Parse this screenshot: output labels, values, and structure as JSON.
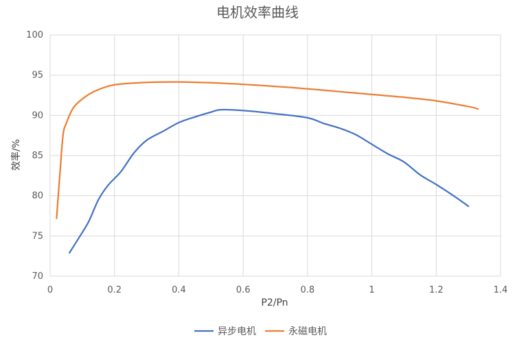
{
  "chart_data": {
    "type": "line",
    "title": "电机效率曲线",
    "xlabel": "P2/Pn",
    "ylabel": "效率/%",
    "xlim": [
      0,
      1.4
    ],
    "ylim": [
      70,
      100
    ],
    "x_ticks": [
      "0",
      "0.2",
      "0.4",
      "0.6",
      "0.8",
      "1",
      "1.2",
      "1.4"
    ],
    "y_ticks": [
      "70",
      "75",
      "80",
      "85",
      "90",
      "95",
      "100"
    ],
    "grid": "vertical-and-horizontal",
    "legend_position": "bottom",
    "series": [
      {
        "name": "异步电机",
        "color": "#4472c4",
        "points": [
          [
            0.06,
            72.9
          ],
          [
            0.09,
            74.8
          ],
          [
            0.12,
            76.8
          ],
          [
            0.15,
            79.5
          ],
          [
            0.18,
            81.3
          ],
          [
            0.22,
            83.0
          ],
          [
            0.26,
            85.3
          ],
          [
            0.3,
            86.9
          ],
          [
            0.35,
            88.0
          ],
          [
            0.4,
            89.1
          ],
          [
            0.45,
            89.8
          ],
          [
            0.5,
            90.4
          ],
          [
            0.53,
            90.7
          ],
          [
            0.6,
            90.6
          ],
          [
            0.7,
            90.2
          ],
          [
            0.8,
            89.7
          ],
          [
            0.85,
            89.0
          ],
          [
            0.9,
            88.4
          ],
          [
            0.95,
            87.6
          ],
          [
            1.0,
            86.4
          ],
          [
            1.05,
            85.2
          ],
          [
            1.1,
            84.2
          ],
          [
            1.15,
            82.6
          ],
          [
            1.2,
            81.4
          ],
          [
            1.25,
            80.1
          ],
          [
            1.3,
            78.7
          ]
        ]
      },
      {
        "name": "永磁电机",
        "color": "#ed7d31",
        "points": [
          [
            0.02,
            77.2
          ],
          [
            0.03,
            82.5
          ],
          [
            0.04,
            87.5
          ],
          [
            0.05,
            89.0
          ],
          [
            0.07,
            90.8
          ],
          [
            0.09,
            91.7
          ],
          [
            0.12,
            92.6
          ],
          [
            0.15,
            93.2
          ],
          [
            0.2,
            93.8
          ],
          [
            0.3,
            94.1
          ],
          [
            0.4,
            94.15
          ],
          [
            0.5,
            94.05
          ],
          [
            0.6,
            93.85
          ],
          [
            0.7,
            93.6
          ],
          [
            0.8,
            93.3
          ],
          [
            0.9,
            92.95
          ],
          [
            1.0,
            92.6
          ],
          [
            1.1,
            92.25
          ],
          [
            1.2,
            91.8
          ],
          [
            1.3,
            91.1
          ],
          [
            1.33,
            90.8
          ]
        ]
      }
    ]
  }
}
